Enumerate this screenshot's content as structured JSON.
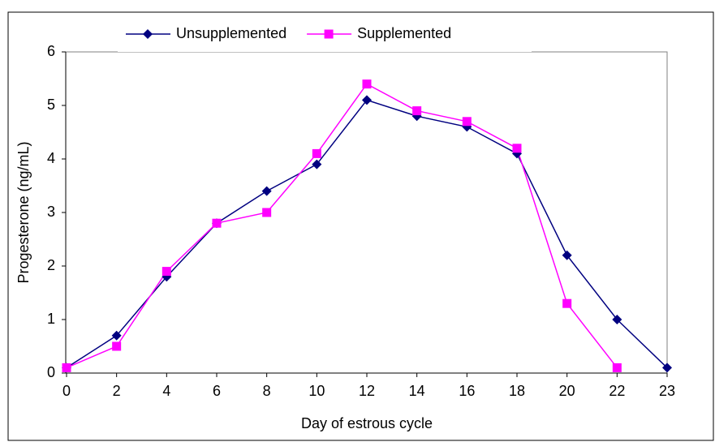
{
  "chart_data": {
    "type": "line",
    "x_label": "Day of estrous cycle",
    "y_label": "Progesterone (ng/mL)",
    "categories": [
      "0",
      "2",
      "4",
      "6",
      "8",
      "10",
      "12",
      "14",
      "16",
      "18",
      "20",
      "22",
      "23"
    ],
    "series": [
      {
        "name": "Unsupplemented",
        "color": "#000080",
        "marker": "diamond",
        "values": [
          0.1,
          0.7,
          1.8,
          2.8,
          3.4,
          3.9,
          5.1,
          4.8,
          4.6,
          4.1,
          2.2,
          1.0,
          0.1
        ]
      },
      {
        "name": "Supplemented",
        "color": "#ff00ff",
        "marker": "square",
        "values": [
          0.1,
          0.5,
          1.9,
          2.8,
          3.0,
          4.1,
          5.4,
          4.9,
          4.7,
          4.2,
          1.3,
          0.1,
          null
        ]
      }
    ],
    "ylim": [
      0,
      6
    ],
    "yticks": [
      0,
      1,
      2,
      3,
      4,
      5,
      6
    ],
    "legend": "top"
  }
}
